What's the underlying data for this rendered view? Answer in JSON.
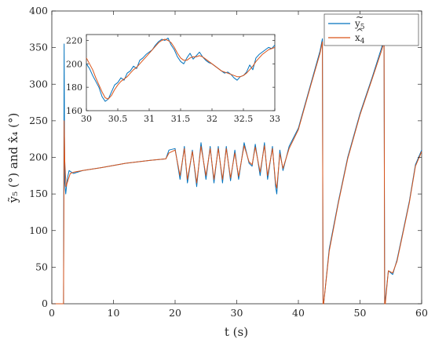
{
  "chart_data": [
    {
      "type": "line",
      "title": "",
      "xlabel": "t (s)",
      "ylabel": "ỹ₅ (°) and x̂₄ (°)",
      "xlim": [
        0,
        60
      ],
      "ylim": [
        0,
        400
      ],
      "x_ticks": [
        "0",
        "10",
        "20",
        "30",
        "40",
        "50",
        "60"
      ],
      "y_ticks": [
        "0",
        "50",
        "100",
        "150",
        "200",
        "250",
        "300",
        "350",
        "400"
      ],
      "grid": false,
      "legend_position": "top-right",
      "legend": [
        {
          "label": "ỹ₅",
          "main": "y",
          "sub": "5",
          "color": "#0072BD"
        },
        {
          "label": "x̂₄",
          "main": "x",
          "sub": "4",
          "color": "#D95319"
        }
      ],
      "series": [
        {
          "name": "ỹ₅",
          "color": "#0072BD",
          "x": [
            0,
            1.9,
            2.0,
            2.05,
            2.1,
            2.25,
            2.5,
            2.8,
            3.5,
            5,
            8,
            12,
            16,
            18.5,
            19,
            20,
            20.8,
            21.5,
            22,
            22.8,
            23.5,
            24.2,
            25,
            25.7,
            26.3,
            27,
            27.7,
            28.3,
            29,
            29.7,
            30.3,
            31.2,
            32,
            32.5,
            33,
            33.8,
            34.5,
            35,
            35.8,
            36.3,
            36.5,
            37,
            37.5,
            38.5,
            40,
            42,
            43.5,
            43.9,
            44.0,
            44.1,
            45,
            46.5,
            48,
            50,
            52,
            53.5,
            53.9,
            54.0,
            54.1,
            54.6,
            55.3,
            56,
            57,
            58,
            59,
            60
          ],
          "y": [
            0,
            0,
            355,
            230,
            165,
            150,
            170,
            182,
            178,
            182,
            186,
            192,
            196,
            198,
            210,
            212,
            170,
            215,
            165,
            210,
            160,
            220,
            170,
            215,
            165,
            215,
            165,
            215,
            168,
            210,
            170,
            220,
            192,
            188,
            218,
            175,
            220,
            170,
            215,
            160,
            150,
            210,
            182,
            215,
            240,
            300,
            345,
            362,
            5,
            0,
            75,
            140,
            200,
            260,
            310,
            350,
            362,
            0,
            5,
            45,
            40,
            60,
            100,
            140,
            190,
            210
          ]
        },
        {
          "name": "x̂₄",
          "color": "#D95319",
          "x": [
            0,
            1.9,
            2.0,
            2.1,
            2.3,
            2.6,
            3.0,
            3.6,
            5,
            8,
            12,
            16,
            18.5,
            19,
            20,
            20.8,
            21.5,
            22,
            22.8,
            23.5,
            24.2,
            25,
            25.7,
            26.3,
            27,
            27.7,
            28.3,
            29,
            29.7,
            30.3,
            31.2,
            32,
            32.5,
            33,
            33.8,
            34.5,
            35,
            35.8,
            36.3,
            36.5,
            37,
            37.5,
            38.5,
            40,
            42,
            43.5,
            43.9,
            44.0,
            44.1,
            45,
            46.5,
            48,
            50,
            52,
            53.5,
            53.9,
            54.0,
            54.1,
            54.6,
            55.3,
            56,
            57,
            58,
            59,
            60
          ],
          "y": [
            0,
            0,
            250,
            195,
            160,
            168,
            178,
            180,
            182,
            186,
            192,
            196,
            198,
            206,
            210,
            175,
            212,
            170,
            208,
            165,
            215,
            175,
            212,
            170,
            212,
            170,
            212,
            172,
            206,
            174,
            216,
            194,
            190,
            214,
            180,
            216,
            175,
            212,
            165,
            158,
            205,
            185,
            212,
            238,
            298,
            342,
            358,
            0,
            0,
            72,
            138,
            198,
            258,
            308,
            346,
            358,
            0,
            0,
            45,
            42,
            58,
            98,
            138,
            188,
            208
          ]
        }
      ]
    },
    {
      "type": "line",
      "title": "",
      "xlabel": "",
      "ylabel": "",
      "xlim": [
        30,
        33
      ],
      "ylim": [
        160,
        225
      ],
      "x_ticks": [
        "30",
        "30.5",
        "31",
        "31.5",
        "32",
        "32.5",
        "33"
      ],
      "y_ticks": [
        "160",
        "180",
        "200",
        "220"
      ],
      "series": [
        {
          "name": "ỹ₅",
          "color": "#0072BD",
          "x": [
            30,
            30.05,
            30.1,
            30.15,
            30.2,
            30.25,
            30.3,
            30.35,
            30.4,
            30.45,
            30.5,
            30.55,
            30.6,
            30.65,
            30.7,
            30.75,
            30.8,
            30.85,
            30.9,
            30.95,
            31,
            31.05,
            31.1,
            31.15,
            31.2,
            31.25,
            31.3,
            31.35,
            31.4,
            31.45,
            31.5,
            31.55,
            31.6,
            31.65,
            31.7,
            31.75,
            31.8,
            31.85,
            31.9,
            31.95,
            32,
            32.05,
            32.1,
            32.15,
            32.2,
            32.25,
            32.3,
            32.35,
            32.4,
            32.45,
            32.5,
            32.55,
            32.6,
            32.65,
            32.7,
            32.75,
            32.8,
            32.85,
            32.9,
            32.95,
            33
          ],
          "y": [
            200,
            196,
            190,
            185,
            180,
            172,
            168,
            170,
            176,
            182,
            184,
            188,
            186,
            192,
            194,
            198,
            196,
            203,
            205,
            208,
            210,
            212,
            216,
            219,
            221,
            220,
            222,
            216,
            212,
            206,
            202,
            200,
            205,
            209,
            204,
            207,
            210,
            206,
            203,
            201,
            200,
            198,
            196,
            194,
            192,
            193,
            191,
            188,
            186,
            189,
            190,
            193,
            199,
            195,
            205,
            208,
            210,
            212,
            214,
            213,
            216
          ]
        },
        {
          "name": "x̂₄",
          "color": "#D95319",
          "x": [
            30,
            30.05,
            30.1,
            30.15,
            30.2,
            30.25,
            30.3,
            30.35,
            30.4,
            30.45,
            30.5,
            30.55,
            30.6,
            30.65,
            30.7,
            30.75,
            30.8,
            30.85,
            30.9,
            30.95,
            31,
            31.05,
            31.1,
            31.15,
            31.2,
            31.25,
            31.3,
            31.35,
            31.4,
            31.45,
            31.5,
            31.55,
            31.6,
            31.65,
            31.7,
            31.75,
            31.8,
            31.85,
            31.9,
            31.95,
            32,
            32.05,
            32.1,
            32.15,
            32.2,
            32.25,
            32.3,
            32.35,
            32.4,
            32.45,
            32.5,
            32.55,
            32.6,
            32.65,
            32.7,
            32.75,
            32.8,
            32.85,
            32.9,
            32.95,
            33
          ],
          "y": [
            205,
            200,
            195,
            188,
            182,
            176,
            171,
            170,
            173,
            178,
            182,
            185,
            187,
            189,
            192,
            195,
            197,
            200,
            203,
            206,
            209,
            212,
            215,
            218,
            220,
            221,
            220,
            218,
            214,
            209,
            205,
            203,
            203,
            205,
            206,
            206,
            207,
            206,
            204,
            202,
            200,
            198,
            196,
            194,
            193,
            192,
            191,
            190,
            189,
            189,
            190,
            192,
            195,
            198,
            202,
            205,
            208,
            210,
            212,
            213,
            214
          ]
        }
      ]
    }
  ]
}
